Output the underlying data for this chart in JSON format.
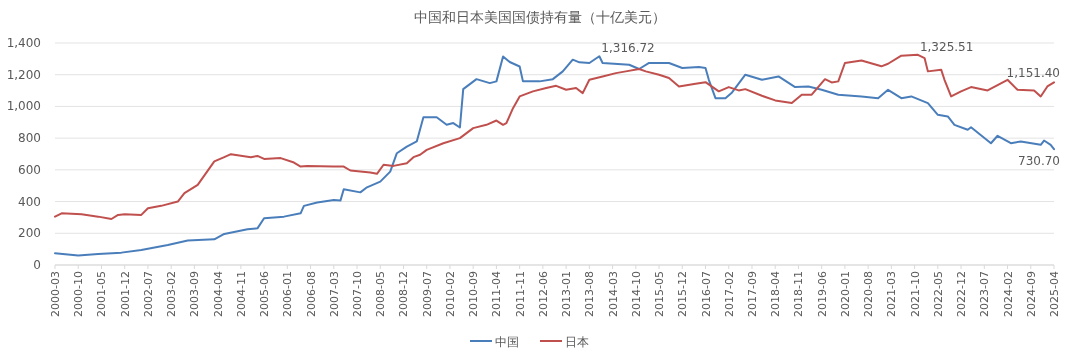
{
  "chart_data": {
    "type": "line",
    "title": "中国和日本美国国债持有量（十亿美元）",
    "xlim": [
      "2000-03",
      "2025-04"
    ],
    "xticks": [
      "2000-03",
      "2000-10",
      "2001-05",
      "2001-12",
      "2002-07",
      "2003-02",
      "2003-09",
      "2004-04",
      "2004-11",
      "2005-06",
      "2006-01",
      "2006-08",
      "2007-03",
      "2007-10",
      "2008-05",
      "2008-12",
      "2009-07",
      "2010-02",
      "2010-09",
      "2011-04",
      "2011-11",
      "2012-06",
      "2013-01",
      "2013-08",
      "2014-03",
      "2014-10",
      "2015-05",
      "2015-12",
      "2016-07",
      "2017-02",
      "2017-09",
      "2018-04",
      "2018-11",
      "2019-06",
      "2020-01",
      "2020-08",
      "2021-03",
      "2021-10",
      "2022-05",
      "2022-12",
      "2023-07",
      "2024-02",
      "2024-09",
      "2025-04"
    ],
    "ylim": [
      0,
      1400
    ],
    "yticks": [
      0,
      200,
      400,
      600,
      800,
      {
        "value": 1000,
        "label": "1,000"
      },
      {
        "value": 1200,
        "label": "1,200"
      },
      {
        "value": 1400,
        "label": "1,400"
      }
    ],
    "grid": "y",
    "legend": "bottom",
    "series": [
      {
        "name": "中国",
        "color": "#4a7ebb",
        "x": [
          "2000-03",
          "2000-10",
          "2001-04",
          "2001-11",
          "2002-05",
          "2003-01",
          "2003-07",
          "2004-03",
          "2004-06",
          "2005-01",
          "2005-04",
          "2005-06",
          "2005-12",
          "2006-05",
          "2006-06",
          "2006-10",
          "2007-03",
          "2007-05",
          "2007-06",
          "2007-11",
          "2008-01",
          "2008-05",
          "2008-08",
          "2008-10",
          "2009-01",
          "2009-04",
          "2009-06",
          "2009-10",
          "2010-01",
          "2010-03",
          "2010-05",
          "2010-06",
          "2010-10",
          "2011-02",
          "2011-04",
          "2011-06",
          "2011-08",
          "2011-11",
          "2011-12",
          "2012-05",
          "2012-09",
          "2012-12",
          "2013-03",
          "2013-05",
          "2013-08",
          "2013-11",
          "2013-12",
          "2014-08",
          "2014-11",
          "2015-02",
          "2015-08",
          "2015-12",
          "2016-05",
          "2016-07",
          "2016-08",
          "2016-10",
          "2017-01",
          "2017-03",
          "2017-07",
          "2017-12",
          "2018-05",
          "2018-10",
          "2019-02",
          "2019-06",
          "2019-11",
          "2020-06",
          "2020-11",
          "2021-02",
          "2021-06",
          "2021-09",
          "2022-02",
          "2022-05",
          "2022-08",
          "2022-10",
          "2023-02",
          "2023-03",
          "2023-09",
          "2023-11",
          "2024-03",
          "2024-06",
          "2024-12",
          "2025-01",
          "2025-03",
          "2025-04"
        ],
        "values": [
          74,
          60,
          69,
          78,
          95,
          126,
          154,
          162,
          196,
          225,
          231,
          295,
          305,
          326,
          373,
          394,
          410,
          406,
          478,
          458,
          490,
          526,
          589,
          705,
          747,
          779,
          932,
          932,
          884,
          895,
          867,
          1109,
          1172,
          1147,
          1158,
          1315,
          1280,
          1252,
          1158,
          1158,
          1172,
          1221,
          1295,
          1278,
          1274,
          1316.72,
          1274,
          1263,
          1236,
          1274,
          1274,
          1242,
          1248,
          1242,
          1168,
          1052,
          1052,
          1088,
          1200,
          1168,
          1189,
          1122,
          1126,
          1105,
          1074,
          1063,
          1052,
          1105,
          1052,
          1063,
          1021,
          947,
          937,
          884,
          853,
          869,
          768,
          815,
          768,
          779,
          758,
          785,
          758,
          730.7
        ]
      },
      {
        "name": "日本",
        "color": "#c0504d",
        "x": [
          "2000-03",
          "2000-05",
          "2000-11",
          "2001-04",
          "2001-08",
          "2001-10",
          "2001-12",
          "2002-05",
          "2002-07",
          "2002-11",
          "2003-04",
          "2003-06",
          "2003-10",
          "2004-03",
          "2004-06",
          "2004-08",
          "2005-02",
          "2005-04",
          "2005-06",
          "2005-11",
          "2006-03",
          "2006-05",
          "2006-07",
          "2007-03",
          "2007-06",
          "2007-08",
          "2008-02",
          "2008-04",
          "2008-06",
          "2008-09",
          "2009-01",
          "2009-03",
          "2009-05",
          "2009-07",
          "2009-12",
          "2010-05",
          "2010-09",
          "2011-01",
          "2011-04",
          "2011-06",
          "2011-07",
          "2011-09",
          "2011-11",
          "2012-03",
          "2012-07",
          "2012-10",
          "2013-01",
          "2013-04",
          "2013-06",
          "2013-08",
          "2013-12",
          "2014-04",
          "2014-07",
          "2014-11",
          "2015-01",
          "2015-05",
          "2015-08",
          "2015-11",
          "2016-04",
          "2016-07",
          "2016-11",
          "2017-02",
          "2017-05",
          "2017-07",
          "2017-12",
          "2018-04",
          "2018-09",
          "2018-12",
          "2019-03",
          "2019-07",
          "2019-09",
          "2019-11",
          "2020-01",
          "2020-06",
          "2020-12",
          "2021-02",
          "2021-06",
          "2021-11",
          "2022-01",
          "2022-02",
          "2022-06",
          "2022-07",
          "2022-09",
          "2022-12",
          "2023-03",
          "2023-08",
          "2024-02",
          "2024-05",
          "2024-10",
          "2024-12",
          "2025-02",
          "2025-04"
        ],
        "values": [
          305,
          326,
          320,
          305,
          290,
          316,
          320,
          316,
          358,
          373,
          400,
          453,
          505,
          653,
          680,
          699,
          680,
          688,
          669,
          674,
          646,
          621,
          625,
          621,
          621,
          596,
          583,
          575,
          632,
          625,
          642,
          680,
          695,
          726,
          768,
          800,
          863,
          884,
          911,
          884,
          895,
          989,
          1063,
          1095,
          1116,
          1130,
          1105,
          1116,
          1084,
          1168,
          1189,
          1210,
          1221,
          1236,
          1221,
          1200,
          1179,
          1126,
          1143,
          1153,
          1095,
          1122,
          1101,
          1109,
          1067,
          1038,
          1021,
          1074,
          1074,
          1172,
          1151,
          1158,
          1274,
          1290,
          1253,
          1269,
          1320,
          1325.51,
          1305,
          1221,
          1232,
          1168,
          1063,
          1095,
          1122,
          1101,
          1168,
          1105,
          1101,
          1063,
          1126,
          1151.4
        ]
      }
    ],
    "annotations": [
      {
        "text": "1,316.72",
        "x": "2013-11",
        "y": 1316.72
      },
      {
        "text": "1,325.51",
        "x": "2021-11",
        "y": 1325.51
      },
      {
        "text": "1,151.40",
        "x": "2025-04",
        "y": 1151.4
      },
      {
        "text": "730.70",
        "x": "2025-04",
        "y": 730.7
      }
    ]
  }
}
